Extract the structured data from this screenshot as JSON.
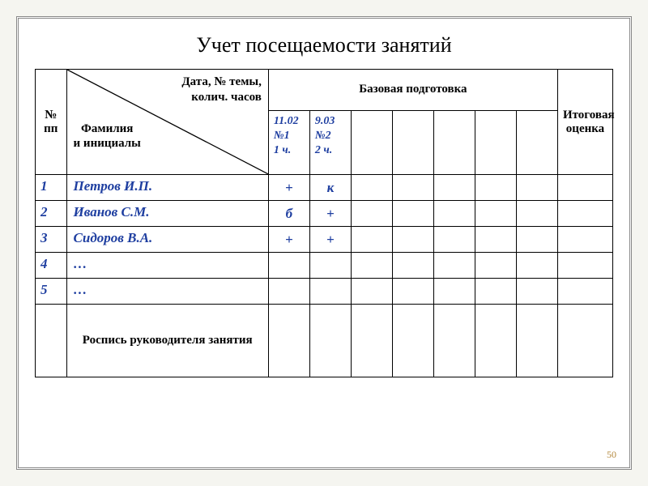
{
  "title": "Учет посещаемости занятий",
  "headers": {
    "num": "№ пп",
    "diag_top": "Дата, № темы,\nколич. часов",
    "diag_bot": "Фамилия\n и инициалы",
    "base": "Базовая подготовка",
    "final": "Итоговая оценка"
  },
  "date_cols": [
    "11.02\n №1\n 1 ч.",
    "9.03\n №2\n 2 ч.",
    "",
    "",
    "",
    "",
    ""
  ],
  "rows": [
    {
      "n": "1",
      "name": "Петров И.П.",
      "marks": [
        "+",
        "к",
        "",
        "",
        "",
        "",
        ""
      ],
      "final": ""
    },
    {
      "n": "2",
      "name": "Иванов С.М.",
      "marks": [
        "б",
        "+",
        "",
        "",
        "",
        "",
        ""
      ],
      "final": ""
    },
    {
      "n": "3",
      "name": "Сидоров  В.А.",
      "marks": [
        "+",
        "+",
        "",
        "",
        "",
        "",
        ""
      ],
      "final": ""
    },
    {
      "n": "4",
      "name": "…",
      "marks": [
        "",
        "",
        "",
        "",
        "",
        "",
        ""
      ],
      "final": ""
    },
    {
      "n": "5",
      "name": "…",
      "marks": [
        "",
        "",
        "",
        "",
        "",
        "",
        ""
      ],
      "final": ""
    }
  ],
  "signature_label": "Роспись руководителя занятия",
  "page_number": "50",
  "colors": {
    "data_text": "#1e3ea0",
    "border": "#000000",
    "page_num": "#b58a3f",
    "bg": "#ffffff"
  }
}
